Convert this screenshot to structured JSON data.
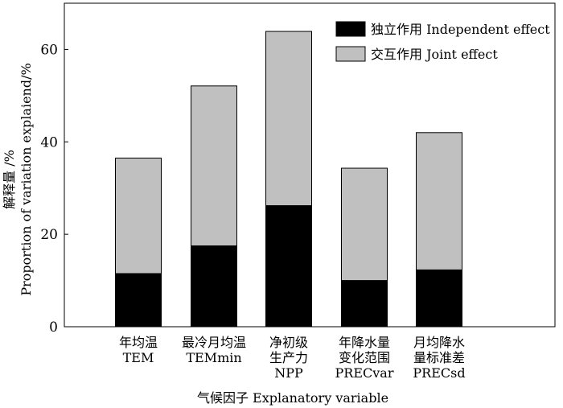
{
  "chart_data": {
    "type": "bar",
    "stacked": true,
    "categories": [
      [
        "年均温",
        "TEM"
      ],
      [
        "最冷月均温",
        "TEMmin"
      ],
      [
        "净初级",
        "生产力",
        "NPP"
      ],
      [
        "年降水量",
        "变化范围",
        "PRECvar"
      ],
      [
        "月均降水",
        "量标准差",
        "PRECsd"
      ]
    ],
    "series": [
      {
        "name": "独立作用 Independent effect",
        "color": "#000000",
        "values": [
          11.5,
          17.5,
          26.2,
          10.0,
          12.3
        ]
      },
      {
        "name": "交互作用 Joint effect",
        "color": "#c0c0c0",
        "values": [
          25.0,
          34.6,
          37.7,
          24.3,
          29.7
        ]
      }
    ],
    "totals": [
      36.5,
      52.1,
      63.9,
      34.3,
      42.0
    ],
    "xlabel": "气候因子 Explanatory variable",
    "ylabel": [
      "解释量 /%",
      "Proportion of variation explaiend/%"
    ],
    "yticks": [
      0,
      20,
      40,
      60
    ],
    "ylim": [
      0,
      70
    ],
    "legend_position": "top-right",
    "grid": false
  }
}
